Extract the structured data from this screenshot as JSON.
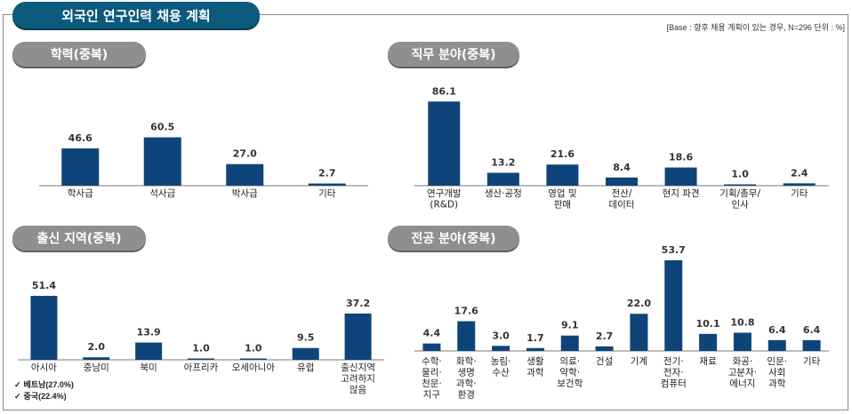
{
  "header": {
    "title": "외국인 연구인력 채용 계획",
    "base_note": "[Base : 향후 채용 계획이 있는 경우, N=296 단위 : %]"
  },
  "notes": {
    "items": [
      "베트남(27.0%)",
      "중국(22.4%)"
    ],
    "check": "✓"
  },
  "colors": {
    "bar": "#0e4479",
    "pill": "#8f8f8f",
    "title": "#0b5a7c"
  },
  "chart_data": [
    {
      "type": "bar",
      "title": "학력(중복)",
      "categories": [
        [
          "학사급"
        ],
        [
          "석사급"
        ],
        [
          "박사급"
        ],
        [
          "기타"
        ]
      ],
      "values": [
        46.6,
        60.5,
        27.0,
        2.7
      ],
      "labels": [
        "46.6",
        "60.5",
        "27.0",
        "2.7"
      ],
      "ylim": [
        0,
        100
      ]
    },
    {
      "type": "bar",
      "title": "직무 분야(중복)",
      "categories": [
        [
          "연구개발",
          "(R&D)"
        ],
        [
          "생산·공정"
        ],
        [
          "영업 및",
          "판매"
        ],
        [
          "전산/",
          "데이터"
        ],
        [
          "현지 파견"
        ],
        [
          "기획/총무/",
          "인사"
        ],
        [
          "기타"
        ]
      ],
      "values": [
        86.1,
        13.2,
        21.6,
        8.4,
        18.6,
        1.0,
        2.4
      ],
      "labels": [
        "86.1",
        "13.2",
        "21.6",
        "8.4",
        "18.6",
        "1.0",
        "2.4"
      ],
      "ylim": [
        0,
        100
      ]
    },
    {
      "type": "bar",
      "title": "출신 지역(중복)",
      "categories": [
        [
          "아시아"
        ],
        [
          "중남미"
        ],
        [
          "북미"
        ],
        [
          "아프리카"
        ],
        [
          "오세아니아"
        ],
        [
          "유럽"
        ],
        [
          "출신지역",
          "고려하지",
          "않음"
        ]
      ],
      "values": [
        51.4,
        2.0,
        13.9,
        1.0,
        1.0,
        9.5,
        37.2
      ],
      "labels": [
        "51.4",
        "2.0",
        "13.9",
        "1.0",
        "1.0",
        "9.5",
        "37.2"
      ],
      "ylim": [
        0,
        100
      ]
    },
    {
      "type": "bar",
      "title": "전공 분야(중복)",
      "categories": [
        [
          "수학·",
          "물리·",
          "천문·",
          "지구"
        ],
        [
          "화학·",
          "생명",
          "과학·",
          "환경"
        ],
        [
          "농림·",
          "수산"
        ],
        [
          "생활",
          "과학"
        ],
        [
          "의료·",
          "약학·",
          "보건학"
        ],
        [
          "건설"
        ],
        [
          "기계"
        ],
        [
          "전기·",
          "전자·",
          "컴퓨터"
        ],
        [
          "재료"
        ],
        [
          "화공·",
          "고분자·",
          "에너지"
        ],
        [
          "인문·",
          "사회",
          "과학"
        ],
        [
          "기타"
        ]
      ],
      "values": [
        4.4,
        17.6,
        3.0,
        1.7,
        9.1,
        2.7,
        22.0,
        53.7,
        10.1,
        10.8,
        6.4,
        6.4
      ],
      "labels": [
        "4.4",
        "17.6",
        "3.0",
        "1.7",
        "9.1",
        "2.7",
        "22.0",
        "53.7",
        "10.1",
        "10.8",
        "6.4",
        "6.4"
      ],
      "ylim": [
        0,
        60
      ]
    }
  ]
}
